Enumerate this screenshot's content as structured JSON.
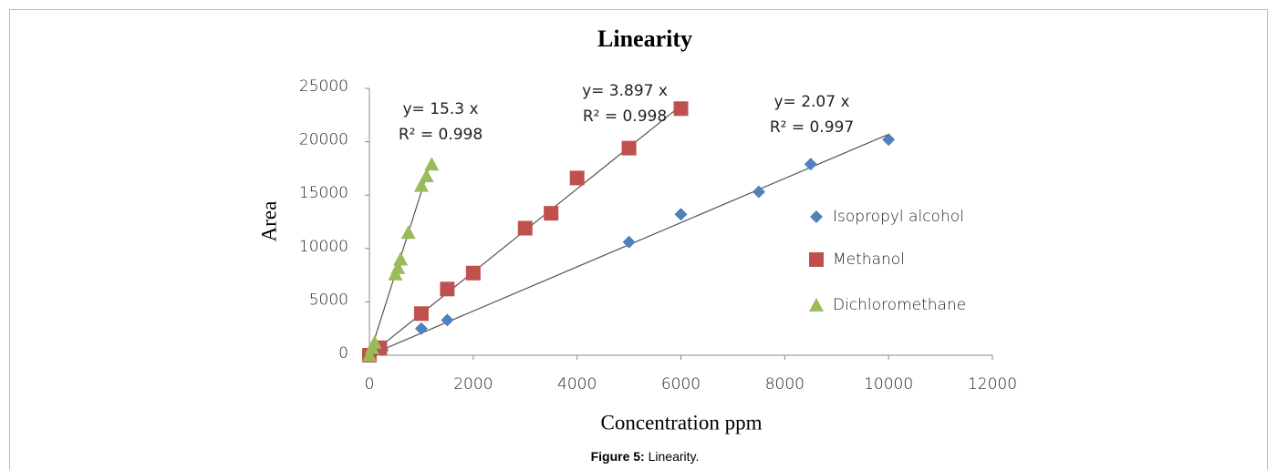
{
  "chart_data": {
    "type": "scatter",
    "title": "Linearity",
    "xlabel": "Concentration ppm",
    "ylabel": "Area",
    "xlim": [
      0,
      12000
    ],
    "xticks": [
      0,
      2000,
      4000,
      6000,
      8000,
      10000,
      12000
    ],
    "ylim": [
      0,
      25000
    ],
    "yticks": [
      0,
      5000,
      10000,
      15000,
      20000,
      25000
    ],
    "grid": false,
    "legend": "right",
    "series": [
      {
        "name": "Isopropyl alcohol",
        "color": "#4f81bd",
        "marker": "diamond",
        "x": [
          0,
          250,
          1000,
          1500,
          5000,
          6000,
          7500,
          8500,
          10000
        ],
        "values": [
          0,
          500,
          2500,
          3300,
          10600,
          13200,
          15300,
          17900,
          20200
        ],
        "trendline": {
          "slope": 2.07,
          "equation": "y= 2.07 x",
          "r_squared": "R² = 0.997"
        }
      },
      {
        "name": "Methanol",
        "color": "#c0504d",
        "marker": "square",
        "x": [
          0,
          200,
          1000,
          1500,
          2000,
          3000,
          3500,
          4000,
          5000,
          6000
        ],
        "values": [
          0,
          700,
          3900,
          6200,
          7700,
          11900,
          13300,
          16600,
          19400,
          23100
        ],
        "trendline": {
          "slope": 3.897,
          "equation": "y= 3.897 x",
          "r_squared": "R² = 0.998"
        }
      },
      {
        "name": "Dichloromethane",
        "color": "#9bbb59",
        "marker": "triangle",
        "x": [
          0,
          50,
          100,
          500,
          550,
          600,
          750,
          1000,
          1100,
          1200
        ],
        "values": [
          0,
          700,
          1200,
          7600,
          8200,
          9000,
          11500,
          15900,
          16800,
          17900
        ],
        "trendline": {
          "slope": 15.3,
          "equation": "y= 15.3 x",
          "r_squared": "R² = 0.998"
        }
      }
    ]
  },
  "caption": {
    "label": "Figure 5:",
    "text": "Linearity."
  }
}
